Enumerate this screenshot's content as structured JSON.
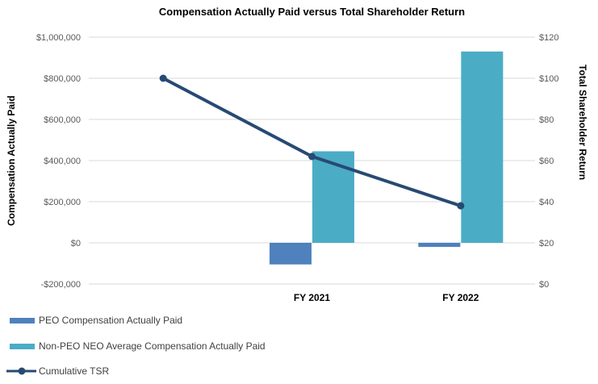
{
  "title": "Compensation Actually Paid versus Total Shareholder Return",
  "chart_data": {
    "type": "combo",
    "subtype": "clustered-bar-plus-line",
    "categories": [
      "",
      "FY 2021",
      "FY 2022"
    ],
    "bar_series": [
      {
        "name": "PEO Compensation Actually Paid",
        "axis": "left",
        "color": "#4F81BD",
        "values": [
          null,
          -105000,
          -20000
        ]
      },
      {
        "name": "Non-PEO NEO Average Compensation Actually Paid",
        "axis": "left",
        "color": "#4BACC6",
        "values": [
          null,
          445000,
          930000
        ]
      }
    ],
    "line_series": [
      {
        "name": "Cumulative TSR",
        "axis": "right",
        "color": "#274A73",
        "marker": "circle",
        "values": [
          100,
          62,
          38
        ]
      }
    ],
    "left_axis": {
      "title": "Compensation Actually Paid",
      "range": [
        -200000,
        1000000
      ],
      "tick_values": [
        1000000,
        800000,
        600000,
        400000,
        200000,
        0,
        -200000
      ],
      "tick_labels": [
        "$1,000,000",
        "$800,000",
        "$600,000",
        "$400,000",
        "$200,000",
        "$0",
        "-$200,000"
      ]
    },
    "right_axis": {
      "title": "Total Shareholder Return",
      "range": [
        0,
        120
      ],
      "tick_values": [
        120,
        100,
        80,
        60,
        40,
        20,
        0
      ],
      "tick_labels": [
        "$120",
        "$100",
        "$80",
        "$60",
        "$40",
        "$20",
        "$0"
      ]
    },
    "grid": "horizontal",
    "gridline_color": "#D9D9D9",
    "tick_label_color": "#595959",
    "x_label_color": "#000000",
    "legend_position": "bottom-left"
  }
}
